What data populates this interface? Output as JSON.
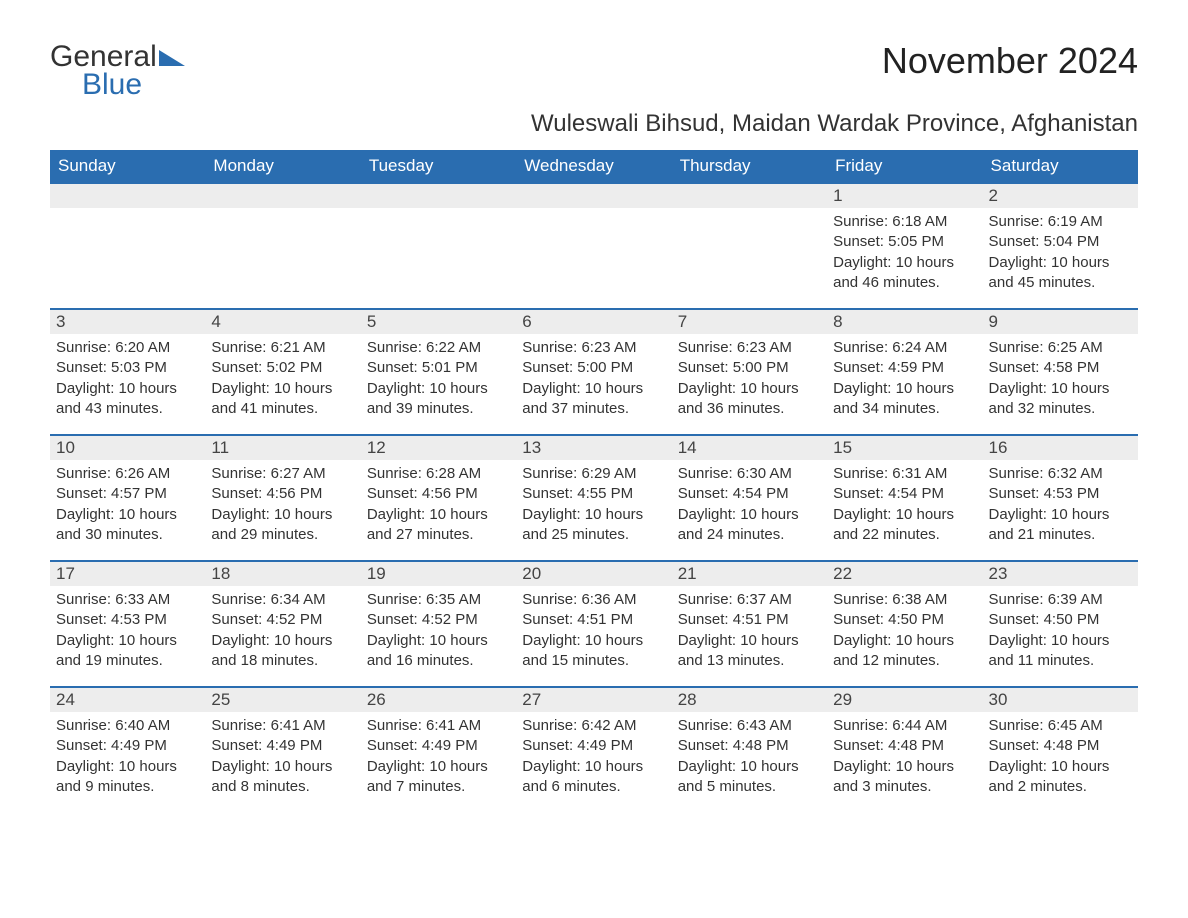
{
  "logo": {
    "text1": "General",
    "text2": "Blue"
  },
  "title": "November 2024",
  "subtitle": "Wuleswali Bihsud, Maidan Wardak Province, Afghanistan",
  "colors": {
    "header_bg": "#2a6db0",
    "header_text": "#ffffff",
    "daynum_bg": "#ededed",
    "row_border": "#2a6db0",
    "body_text": "#333333",
    "page_bg": "#ffffff"
  },
  "fontsizes": {
    "title": 36,
    "subtitle": 24,
    "dayheader": 17,
    "daynum": 17,
    "body": 15
  },
  "day_headers": [
    "Sunday",
    "Monday",
    "Tuesday",
    "Wednesday",
    "Thursday",
    "Friday",
    "Saturday"
  ],
  "weeks": [
    [
      {
        "num": "",
        "sunrise": "",
        "sunset": "",
        "daylight": ""
      },
      {
        "num": "",
        "sunrise": "",
        "sunset": "",
        "daylight": ""
      },
      {
        "num": "",
        "sunrise": "",
        "sunset": "",
        "daylight": ""
      },
      {
        "num": "",
        "sunrise": "",
        "sunset": "",
        "daylight": ""
      },
      {
        "num": "",
        "sunrise": "",
        "sunset": "",
        "daylight": ""
      },
      {
        "num": "1",
        "sunrise": "Sunrise: 6:18 AM",
        "sunset": "Sunset: 5:05 PM",
        "daylight": "Daylight: 10 hours and 46 minutes."
      },
      {
        "num": "2",
        "sunrise": "Sunrise: 6:19 AM",
        "sunset": "Sunset: 5:04 PM",
        "daylight": "Daylight: 10 hours and 45 minutes."
      }
    ],
    [
      {
        "num": "3",
        "sunrise": "Sunrise: 6:20 AM",
        "sunset": "Sunset: 5:03 PM",
        "daylight": "Daylight: 10 hours and 43 minutes."
      },
      {
        "num": "4",
        "sunrise": "Sunrise: 6:21 AM",
        "sunset": "Sunset: 5:02 PM",
        "daylight": "Daylight: 10 hours and 41 minutes."
      },
      {
        "num": "5",
        "sunrise": "Sunrise: 6:22 AM",
        "sunset": "Sunset: 5:01 PM",
        "daylight": "Daylight: 10 hours and 39 minutes."
      },
      {
        "num": "6",
        "sunrise": "Sunrise: 6:23 AM",
        "sunset": "Sunset: 5:00 PM",
        "daylight": "Daylight: 10 hours and 37 minutes."
      },
      {
        "num": "7",
        "sunrise": "Sunrise: 6:23 AM",
        "sunset": "Sunset: 5:00 PM",
        "daylight": "Daylight: 10 hours and 36 minutes."
      },
      {
        "num": "8",
        "sunrise": "Sunrise: 6:24 AM",
        "sunset": "Sunset: 4:59 PM",
        "daylight": "Daylight: 10 hours and 34 minutes."
      },
      {
        "num": "9",
        "sunrise": "Sunrise: 6:25 AM",
        "sunset": "Sunset: 4:58 PM",
        "daylight": "Daylight: 10 hours and 32 minutes."
      }
    ],
    [
      {
        "num": "10",
        "sunrise": "Sunrise: 6:26 AM",
        "sunset": "Sunset: 4:57 PM",
        "daylight": "Daylight: 10 hours and 30 minutes."
      },
      {
        "num": "11",
        "sunrise": "Sunrise: 6:27 AM",
        "sunset": "Sunset: 4:56 PM",
        "daylight": "Daylight: 10 hours and 29 minutes."
      },
      {
        "num": "12",
        "sunrise": "Sunrise: 6:28 AM",
        "sunset": "Sunset: 4:56 PM",
        "daylight": "Daylight: 10 hours and 27 minutes."
      },
      {
        "num": "13",
        "sunrise": "Sunrise: 6:29 AM",
        "sunset": "Sunset: 4:55 PM",
        "daylight": "Daylight: 10 hours and 25 minutes."
      },
      {
        "num": "14",
        "sunrise": "Sunrise: 6:30 AM",
        "sunset": "Sunset: 4:54 PM",
        "daylight": "Daylight: 10 hours and 24 minutes."
      },
      {
        "num": "15",
        "sunrise": "Sunrise: 6:31 AM",
        "sunset": "Sunset: 4:54 PM",
        "daylight": "Daylight: 10 hours and 22 minutes."
      },
      {
        "num": "16",
        "sunrise": "Sunrise: 6:32 AM",
        "sunset": "Sunset: 4:53 PM",
        "daylight": "Daylight: 10 hours and 21 minutes."
      }
    ],
    [
      {
        "num": "17",
        "sunrise": "Sunrise: 6:33 AM",
        "sunset": "Sunset: 4:53 PM",
        "daylight": "Daylight: 10 hours and 19 minutes."
      },
      {
        "num": "18",
        "sunrise": "Sunrise: 6:34 AM",
        "sunset": "Sunset: 4:52 PM",
        "daylight": "Daylight: 10 hours and 18 minutes."
      },
      {
        "num": "19",
        "sunrise": "Sunrise: 6:35 AM",
        "sunset": "Sunset: 4:52 PM",
        "daylight": "Daylight: 10 hours and 16 minutes."
      },
      {
        "num": "20",
        "sunrise": "Sunrise: 6:36 AM",
        "sunset": "Sunset: 4:51 PM",
        "daylight": "Daylight: 10 hours and 15 minutes."
      },
      {
        "num": "21",
        "sunrise": "Sunrise: 6:37 AM",
        "sunset": "Sunset: 4:51 PM",
        "daylight": "Daylight: 10 hours and 13 minutes."
      },
      {
        "num": "22",
        "sunrise": "Sunrise: 6:38 AM",
        "sunset": "Sunset: 4:50 PM",
        "daylight": "Daylight: 10 hours and 12 minutes."
      },
      {
        "num": "23",
        "sunrise": "Sunrise: 6:39 AM",
        "sunset": "Sunset: 4:50 PM",
        "daylight": "Daylight: 10 hours and 11 minutes."
      }
    ],
    [
      {
        "num": "24",
        "sunrise": "Sunrise: 6:40 AM",
        "sunset": "Sunset: 4:49 PM",
        "daylight": "Daylight: 10 hours and 9 minutes."
      },
      {
        "num": "25",
        "sunrise": "Sunrise: 6:41 AM",
        "sunset": "Sunset: 4:49 PM",
        "daylight": "Daylight: 10 hours and 8 minutes."
      },
      {
        "num": "26",
        "sunrise": "Sunrise: 6:41 AM",
        "sunset": "Sunset: 4:49 PM",
        "daylight": "Daylight: 10 hours and 7 minutes."
      },
      {
        "num": "27",
        "sunrise": "Sunrise: 6:42 AM",
        "sunset": "Sunset: 4:49 PM",
        "daylight": "Daylight: 10 hours and 6 minutes."
      },
      {
        "num": "28",
        "sunrise": "Sunrise: 6:43 AM",
        "sunset": "Sunset: 4:48 PM",
        "daylight": "Daylight: 10 hours and 5 minutes."
      },
      {
        "num": "29",
        "sunrise": "Sunrise: 6:44 AM",
        "sunset": "Sunset: 4:48 PM",
        "daylight": "Daylight: 10 hours and 3 minutes."
      },
      {
        "num": "30",
        "sunrise": "Sunrise: 6:45 AM",
        "sunset": "Sunset: 4:48 PM",
        "daylight": "Daylight: 10 hours and 2 minutes."
      }
    ]
  ]
}
